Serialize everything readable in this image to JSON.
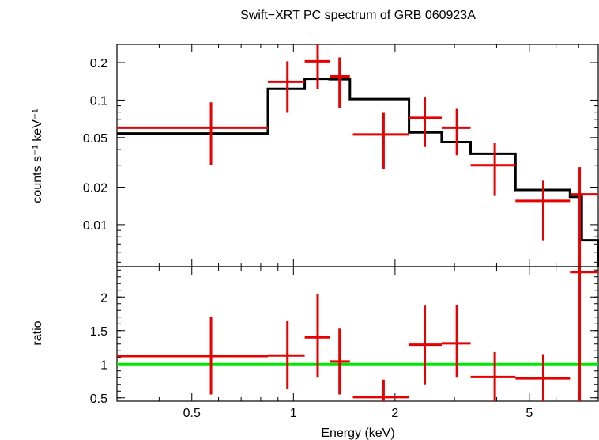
{
  "chart_data": {
    "type": "scatter",
    "title": "Swift−XRT PC spectrum of GRB 060923A",
    "xlabel": "Energy (keV)",
    "xscale": "log",
    "xlim": [
      0.3,
      8.0
    ],
    "x_ticks": [
      {
        "value": 0.5,
        "label": "0.5"
      },
      {
        "value": 1,
        "label": "1"
      },
      {
        "value": 2,
        "label": "2"
      },
      {
        "value": 5,
        "label": "5"
      }
    ],
    "colors": {
      "data": "#e60000",
      "model": "#000000",
      "unity": "#00e600"
    },
    "panels": [
      {
        "name": "spectrum",
        "ylabel": "counts s⁻¹ keV⁻¹",
        "yscale": "log",
        "ylim": [
          0.0046,
          0.28
        ],
        "y_ticks": [
          {
            "value": 0.01,
            "label": "0.01"
          },
          {
            "value": 0.02,
            "label": "0.02"
          },
          {
            "value": 0.05,
            "label": "0.05"
          },
          {
            "value": 0.1,
            "label": "0.1"
          },
          {
            "value": 0.2,
            "label": "0.2"
          }
        ],
        "data": [
          {
            "xlo": 0.3,
            "xhi": 0.84,
            "x": 0.57,
            "y": 0.06,
            "ylo": 0.03,
            "yhi": 0.096
          },
          {
            "xlo": 0.84,
            "xhi": 1.08,
            "x": 0.96,
            "y": 0.14,
            "ylo": 0.079,
            "yhi": 0.205
          },
          {
            "xlo": 1.08,
            "xhi": 1.28,
            "x": 1.18,
            "y": 0.205,
            "ylo": 0.122,
            "yhi": 0.28
          },
          {
            "xlo": 1.28,
            "xhi": 1.47,
            "x": 1.37,
            "y": 0.155,
            "ylo": 0.086,
            "yhi": 0.22
          },
          {
            "xlo": 1.5,
            "xhi": 2.2,
            "x": 1.85,
            "y": 0.053,
            "ylo": 0.028,
            "yhi": 0.079
          },
          {
            "xlo": 2.2,
            "xhi": 2.75,
            "x": 2.45,
            "y": 0.072,
            "ylo": 0.042,
            "yhi": 0.105
          },
          {
            "xlo": 2.75,
            "xhi": 3.35,
            "x": 3.05,
            "y": 0.06,
            "ylo": 0.036,
            "yhi": 0.085
          },
          {
            "xlo": 3.35,
            "xhi": 4.55,
            "x": 3.95,
            "y": 0.03,
            "ylo": 0.017,
            "yhi": 0.045
          },
          {
            "xlo": 4.55,
            "xhi": 6.6,
            "x": 5.5,
            "y": 0.0155,
            "ylo": 0.0075,
            "yhi": 0.0225
          },
          {
            "xlo": 6.6,
            "xhi": 8.0,
            "x": 7.05,
            "y": 0.0175,
            "ylo": 0.0046,
            "yhi": 0.029
          }
        ],
        "model": [
          {
            "xlo": 0.3,
            "xhi": 0.84,
            "y": 0.054
          },
          {
            "xlo": 0.84,
            "xhi": 1.08,
            "y": 0.123
          },
          {
            "xlo": 1.08,
            "xhi": 1.28,
            "y": 0.148
          },
          {
            "xlo": 1.28,
            "xhi": 1.47,
            "y": 0.147
          },
          {
            "xlo": 1.47,
            "xhi": 2.2,
            "y": 0.102
          },
          {
            "xlo": 2.2,
            "xhi": 2.75,
            "y": 0.055
          },
          {
            "xlo": 2.75,
            "xhi": 3.35,
            "y": 0.046
          },
          {
            "xlo": 3.35,
            "xhi": 4.55,
            "y": 0.037
          },
          {
            "xlo": 4.55,
            "xhi": 6.6,
            "y": 0.019
          },
          {
            "xlo": 6.6,
            "xhi": 7.15,
            "y": 0.0167
          },
          {
            "xlo": 7.15,
            "xhi": 8.0,
            "y": 0.0075
          }
        ]
      },
      {
        "name": "ratio",
        "ylabel": "ratio",
        "yscale": "linear",
        "ylim": [
          0.45,
          2.45
        ],
        "y_ticks": [
          {
            "value": 0.5,
            "label": "0.5"
          },
          {
            "value": 1,
            "label": "1"
          },
          {
            "value": 1.5,
            "label": "1.5"
          },
          {
            "value": 2,
            "label": "2"
          }
        ],
        "reference_line": 1,
        "data": [
          {
            "xlo": 0.3,
            "xhi": 0.84,
            "x": 0.57,
            "y": 1.12,
            "ylo": 0.55,
            "yhi": 1.7
          },
          {
            "xlo": 0.84,
            "xhi": 1.08,
            "x": 0.96,
            "y": 1.13,
            "ylo": 0.63,
            "yhi": 1.65
          },
          {
            "xlo": 1.08,
            "xhi": 1.28,
            "x": 1.18,
            "y": 1.4,
            "ylo": 0.8,
            "yhi": 2.05
          },
          {
            "xlo": 1.28,
            "xhi": 1.47,
            "x": 1.37,
            "y": 1.04,
            "ylo": 0.55,
            "yhi": 1.53
          },
          {
            "xlo": 1.5,
            "xhi": 2.2,
            "x": 1.85,
            "y": 0.51,
            "ylo": 0.45,
            "yhi": 0.77
          },
          {
            "xlo": 2.2,
            "xhi": 2.75,
            "x": 2.45,
            "y": 1.29,
            "ylo": 0.7,
            "yhi": 1.87
          },
          {
            "xlo": 2.75,
            "xhi": 3.35,
            "x": 3.05,
            "y": 1.31,
            "ylo": 0.8,
            "yhi": 1.88
          },
          {
            "xlo": 3.35,
            "xhi": 4.55,
            "x": 3.95,
            "y": 0.81,
            "ylo": 0.45,
            "yhi": 1.18
          },
          {
            "xlo": 4.55,
            "xhi": 6.6,
            "x": 5.5,
            "y": 0.79,
            "ylo": 0.45,
            "yhi": 1.15
          },
          {
            "xlo": 6.6,
            "xhi": 8.0,
            "x": 7.05,
            "y": 2.37,
            "ylo": 0.45,
            "yhi": 2.45
          }
        ]
      }
    ]
  }
}
